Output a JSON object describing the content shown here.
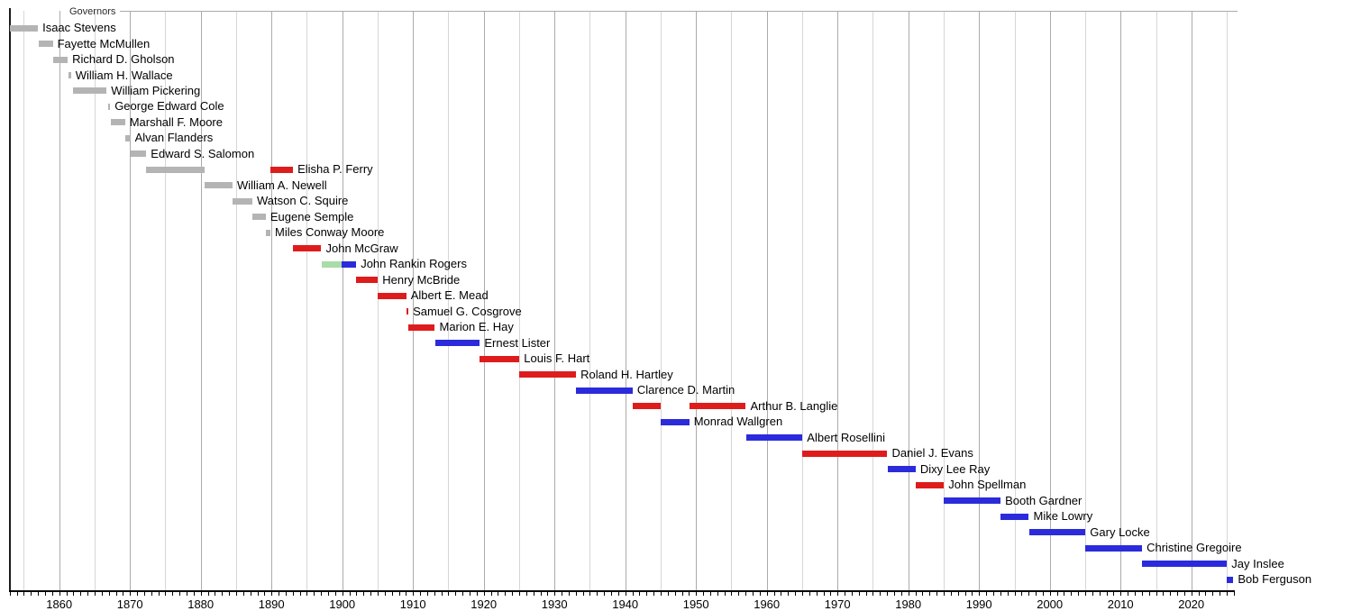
{
  "chart_data": {
    "type": "timeline",
    "title": "Governors",
    "legend_colors": {
      "gray": "#B4B4B4",
      "red": "#DE1C1C",
      "blue": "#2B2BDB",
      "green": "#A9DCA9"
    },
    "layout_hints": {
      "grid_decade_color": "#ABABAB",
      "grid_half_decade_color": "#D6D6D6",
      "axis_color": "#000000",
      "left_border_color": "#1A1A1A",
      "gridline_interval_years": 5,
      "tick_interval_years": 1,
      "legend_position": "none",
      "grid": "on"
    },
    "axis": {
      "start_year": 1853,
      "end_year": 2026,
      "decade_labels": [
        "1860",
        "1870",
        "1880",
        "1890",
        "1900",
        "1910",
        "1920",
        "1930",
        "1940",
        "1950",
        "1960",
        "1970",
        "1980",
        "1990",
        "2000",
        "2010",
        "2020"
      ],
      "decade_label_years": [
        1860,
        1870,
        1880,
        1890,
        1900,
        1910,
        1920,
        1930,
        1940,
        1950,
        1960,
        1970,
        1980,
        1990,
        2000,
        2010,
        2020
      ]
    },
    "governors": [
      {
        "name": "Isaac Stevens",
        "terms": [
          {
            "start": 1853.0,
            "end": 1857.0,
            "color": "gray"
          }
        ]
      },
      {
        "name": "Fayette McMullen",
        "terms": [
          {
            "start": 1857.1,
            "end": 1859.1,
            "color": "gray"
          }
        ]
      },
      {
        "name": "Richard D. Gholson",
        "terms": [
          {
            "start": 1859.1,
            "end": 1861.2,
            "color": "gray"
          }
        ]
      },
      {
        "name": "William H. Wallace",
        "terms": [
          {
            "start": 1861.25,
            "end": 1861.65,
            "color": "gray"
          }
        ]
      },
      {
        "name": "William Pickering",
        "terms": [
          {
            "start": 1862.0,
            "end": 1866.7,
            "color": "gray"
          }
        ]
      },
      {
        "name": "George Edward Cole",
        "terms": [
          {
            "start": 1866.85,
            "end": 1867.2,
            "color": "gray"
          }
        ]
      },
      {
        "name": "Marshall F. Moore",
        "terms": [
          {
            "start": 1867.25,
            "end": 1869.3,
            "color": "gray"
          }
        ]
      },
      {
        "name": "Alvan Flanders",
        "terms": [
          {
            "start": 1869.3,
            "end": 1870.05,
            "color": "gray"
          }
        ]
      },
      {
        "name": "Edward S. Salomon",
        "terms": [
          {
            "start": 1870.05,
            "end": 1872.3,
            "color": "gray"
          }
        ]
      },
      {
        "name": "Elisha P. Ferry",
        "terms": [
          {
            "start": 1872.3,
            "end": 1880.6,
            "color": "gray"
          },
          {
            "start": 1889.85,
            "end": 1893.05,
            "color": "red"
          }
        ]
      },
      {
        "name": "William A. Newell",
        "terms": [
          {
            "start": 1880.6,
            "end": 1884.5,
            "color": "gray"
          }
        ]
      },
      {
        "name": "Watson C. Squire",
        "terms": [
          {
            "start": 1884.5,
            "end": 1887.3,
            "color": "gray"
          }
        ]
      },
      {
        "name": "Eugene Semple",
        "terms": [
          {
            "start": 1887.3,
            "end": 1889.2,
            "color": "gray"
          }
        ]
      },
      {
        "name": "Miles Conway Moore",
        "terms": [
          {
            "start": 1889.2,
            "end": 1889.85,
            "color": "gray"
          }
        ]
      },
      {
        "name": "John McGraw",
        "terms": [
          {
            "start": 1893.05,
            "end": 1897.05,
            "color": "red"
          }
        ]
      },
      {
        "name": "John Rankin Rogers",
        "terms": [
          {
            "start": 1897.05,
            "end": 1899.95,
            "color": "green"
          },
          {
            "start": 1899.95,
            "end": 1901.97,
            "color": "blue"
          }
        ]
      },
      {
        "name": "Henry McBride",
        "terms": [
          {
            "start": 1901.97,
            "end": 1905.04,
            "color": "red"
          }
        ]
      },
      {
        "name": "Albert E. Mead",
        "terms": [
          {
            "start": 1905.04,
            "end": 1909.05,
            "color": "red"
          }
        ]
      },
      {
        "name": "Samuel G. Cosgrove",
        "terms": [
          {
            "start": 1909.05,
            "end": 1909.35,
            "color": "red"
          }
        ]
      },
      {
        "name": "Marion E. Hay",
        "terms": [
          {
            "start": 1909.35,
            "end": 1913.1,
            "color": "red"
          }
        ]
      },
      {
        "name": "Ernest Lister",
        "terms": [
          {
            "start": 1913.1,
            "end": 1919.45,
            "color": "blue"
          }
        ]
      },
      {
        "name": "Louis F. Hart",
        "terms": [
          {
            "start": 1919.45,
            "end": 1925.04,
            "color": "red"
          }
        ]
      },
      {
        "name": "Roland H. Hartley",
        "terms": [
          {
            "start": 1925.04,
            "end": 1933.04,
            "color": "red"
          }
        ]
      },
      {
        "name": "Clarence D. Martin",
        "terms": [
          {
            "start": 1933.04,
            "end": 1941.04,
            "color": "blue"
          }
        ]
      },
      {
        "name": "Arthur B. Langlie",
        "terms": [
          {
            "start": 1941.04,
            "end": 1945.04,
            "color": "red"
          },
          {
            "start": 1949.04,
            "end": 1957.04,
            "color": "red"
          }
        ]
      },
      {
        "name": "Monrad Wallgren",
        "terms": [
          {
            "start": 1945.04,
            "end": 1949.04,
            "color": "blue"
          }
        ]
      },
      {
        "name": "Albert Rosellini",
        "terms": [
          {
            "start": 1957.04,
            "end": 1965.04,
            "color": "blue"
          }
        ]
      },
      {
        "name": "Daniel J. Evans",
        "terms": [
          {
            "start": 1965.04,
            "end": 1977.04,
            "color": "red"
          }
        ]
      },
      {
        "name": "Dixy Lee Ray",
        "terms": [
          {
            "start": 1977.04,
            "end": 1981.04,
            "color": "blue"
          }
        ]
      },
      {
        "name": "John Spellman",
        "terms": [
          {
            "start": 1981.04,
            "end": 1985.04,
            "color": "red"
          }
        ]
      },
      {
        "name": "Booth Gardner",
        "terms": [
          {
            "start": 1985.04,
            "end": 1993.04,
            "color": "blue"
          }
        ]
      },
      {
        "name": "Mike Lowry",
        "terms": [
          {
            "start": 1993.04,
            "end": 1997.04,
            "color": "blue"
          }
        ]
      },
      {
        "name": "Gary Locke",
        "terms": [
          {
            "start": 1997.04,
            "end": 2005.04,
            "color": "blue"
          }
        ]
      },
      {
        "name": "Christine Gregoire",
        "terms": [
          {
            "start": 2005.04,
            "end": 2013.04,
            "color": "blue"
          }
        ]
      },
      {
        "name": "Jay Inslee",
        "terms": [
          {
            "start": 2013.04,
            "end": 2025.04,
            "color": "blue"
          }
        ]
      },
      {
        "name": "Bob Ferguson",
        "terms": [
          {
            "start": 2025.04,
            "end": 2025.95,
            "color": "blue"
          }
        ]
      }
    ]
  }
}
